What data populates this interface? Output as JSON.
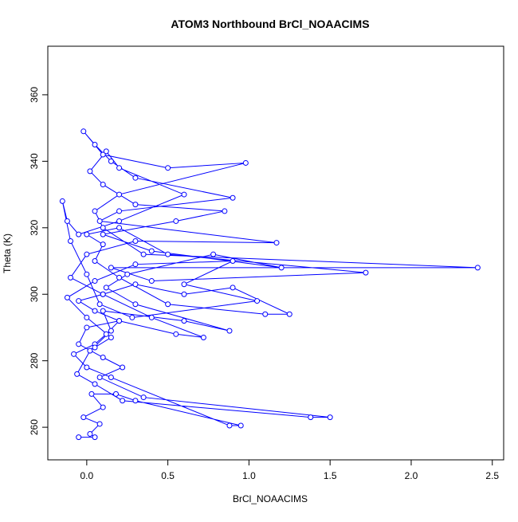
{
  "chart_data": {
    "type": "line",
    "title": "ATOM3 Northbound BrCl_NOAACIMS",
    "xlabel": "BrCl_NOAACIMS",
    "ylabel": "Theta (K)",
    "color": "#0000ff",
    "markers": true,
    "grid": false,
    "xlim": [
      -0.24,
      2.57
    ],
    "ylim": [
      250.2,
      374.6
    ],
    "xticks": [
      {
        "value": 0,
        "label": "0.0"
      },
      {
        "value": 0.5,
        "label": "0.5"
      },
      {
        "value": 1,
        "label": "1.0"
      },
      {
        "value": 1.5,
        "label": "1.5"
      },
      {
        "value": 2,
        "label": "2.0"
      },
      {
        "value": 2.5,
        "label": "2.5"
      }
    ],
    "yticks": [
      260,
      280,
      300,
      320,
      340,
      360
    ],
    "x": [
      -0.05,
      0.05,
      0.02,
      0.08,
      -0.02,
      0.1,
      0.03,
      0.18,
      0.3,
      0.95,
      0.88,
      0.15,
      0.0,
      -0.08,
      0.05,
      0.12,
      0.2,
      0.05,
      -0.05,
      0.1,
      0.3,
      0.6,
      0.9,
      1.25,
      1.1,
      0.5,
      0.2,
      0.05,
      0.1,
      0.0,
      0.2,
      0.5,
      1.72,
      0.4,
      0.15,
      2.41,
      0.35,
      0.1,
      0.05,
      0.2,
      0.98,
      0.5,
      0.1,
      -0.02,
      0.05,
      0.15,
      0.3,
      0.9,
      0.2,
      0.08,
      1.17,
      0.3,
      0.0,
      -0.1,
      0.1,
      0.4,
      0.72,
      0.55,
      0.2,
      0.0,
      -0.05,
      0.1,
      0.22,
      0.08,
      0.35,
      1.5,
      1.38,
      0.22,
      0.05,
      -0.06,
      0.02,
      0.15,
      0.1,
      0.6,
      0.88,
      0.3,
      0.12,
      0.25,
      0.78,
      1.2,
      0.4,
      0.1,
      0.55,
      0.85,
      0.3,
      0.1,
      0.02,
      0.12,
      0.2,
      0.6,
      0.2,
      -0.05,
      -0.12,
      -0.15,
      -0.1,
      0.0,
      0.08,
      0.28,
      1.05,
      0.6,
      0.9,
      0.3,
      0.05,
      -0.12,
      0.0,
      0.15,
      0.05
    ],
    "values": [
      257,
      257,
      258,
      261,
      263,
      266,
      270,
      270,
      268,
      260.5,
      260.5,
      275,
      278,
      282,
      285,
      288,
      292,
      295,
      298,
      300,
      303,
      300,
      302,
      294,
      294,
      297,
      305,
      310,
      315,
      318,
      320,
      312,
      306.5,
      304,
      308,
      308,
      312,
      320,
      325,
      330,
      339.5,
      338,
      342,
      349,
      345,
      340,
      335,
      329,
      325,
      322,
      315.5,
      316,
      312,
      305,
      300,
      293,
      287,
      288,
      292,
      290,
      285,
      281,
      278,
      275,
      269,
      263,
      263,
      268,
      273,
      276,
      283,
      289,
      295,
      292,
      289,
      297,
      302,
      306,
      312,
      308,
      313,
      318,
      322,
      325,
      327,
      333,
      337,
      343,
      338,
      330,
      322,
      318,
      322,
      328,
      316,
      306,
      297,
      293,
      298,
      303,
      310,
      309,
      304,
      299,
      293,
      287,
      284
    ]
  }
}
